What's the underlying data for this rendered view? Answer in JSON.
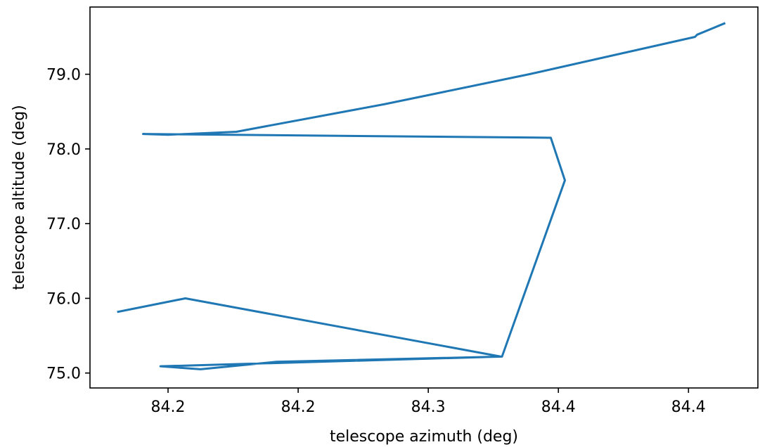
{
  "chart_data": {
    "type": "line",
    "title": "",
    "xlabel": "telescope azimuth (deg)",
    "ylabel": "telescope altitude (deg)",
    "xlim": [
      84.164,
      84.472
    ],
    "ylim": [
      74.8,
      79.9
    ],
    "xticks": [
      {
        "value": 84.2,
        "label": "84.2"
      },
      {
        "value": 84.26,
        "label": "84.2"
      },
      {
        "value": 84.32,
        "label": "84.3"
      },
      {
        "value": 84.38,
        "label": "84.4"
      },
      {
        "value": 84.44,
        "label": "84.4"
      }
    ],
    "yticks": [
      {
        "value": 75.0,
        "label": "75.0"
      },
      {
        "value": 76.0,
        "label": "76.0"
      },
      {
        "value": 77.0,
        "label": "77.0"
      },
      {
        "value": 78.0,
        "label": "78.0"
      },
      {
        "value": 79.0,
        "label": "79.0"
      }
    ],
    "grid": false,
    "series": [
      {
        "color": "#1f77b4",
        "x": [
          84.177,
          84.208,
          84.3535,
          84.1965,
          84.215,
          84.25,
          84.354,
          84.383,
          84.3765,
          84.1885,
          84.2,
          84.2315,
          84.3,
          84.3665,
          84.443,
          84.444,
          84.4565
        ],
        "y": [
          75.82,
          76.0,
          75.22,
          75.09,
          75.05,
          75.15,
          75.22,
          77.58,
          78.15,
          78.2,
          78.19,
          78.23,
          78.6,
          79.0,
          79.5,
          79.53,
          79.68
        ]
      }
    ]
  }
}
